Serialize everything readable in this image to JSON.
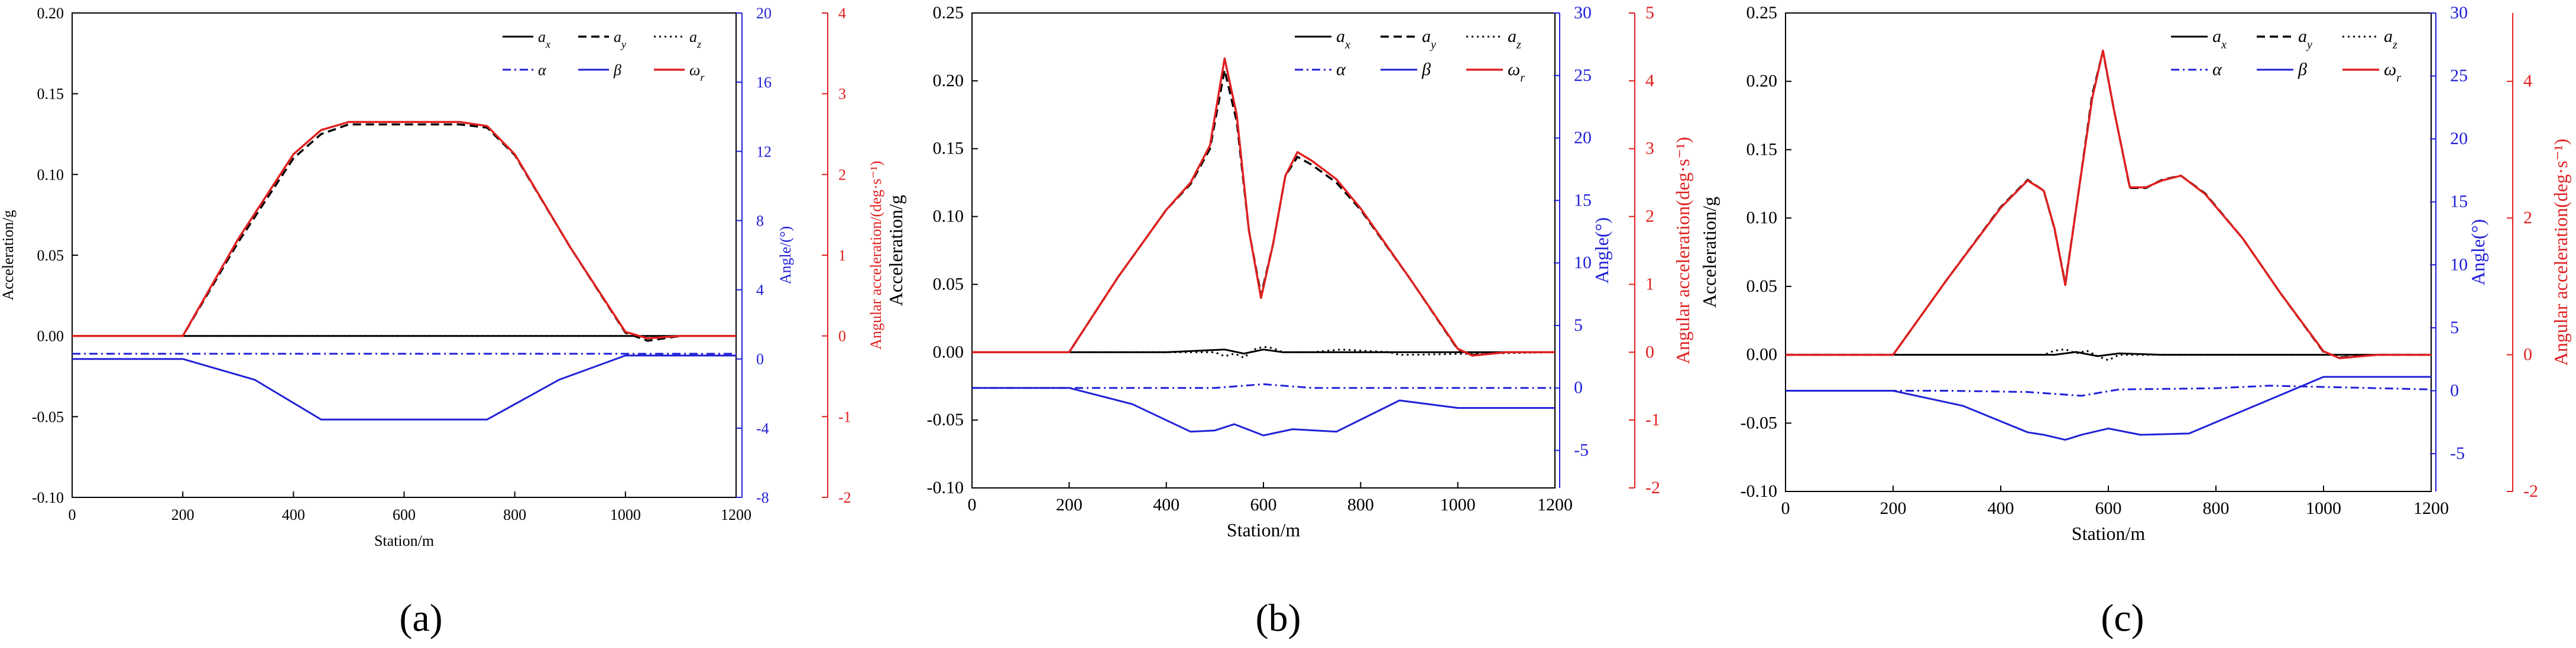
{
  "colors": {
    "accel": "#000000",
    "angle": "#2020d8",
    "omega": "#e02020",
    "axis": "#000000"
  },
  "chart_data": [
    {
      "type": "line",
      "panel_label": "(a)",
      "xlabel": "Station/m",
      "ylabel": "Acceleration/g",
      "ylabel_angle": "Angle/(°)",
      "ylabel_omega": "Angular acceleration/(deg·s⁻¹)",
      "xlim": [
        0,
        1200
      ],
      "ylim": [
        -0.1,
        0.2
      ],
      "ylim_angle": [
        -8,
        20
      ],
      "ylim_omega": [
        -2,
        4
      ],
      "xticks": [
        "0",
        "200",
        "400",
        "600",
        "800",
        "1000",
        "1200"
      ],
      "yticks": [
        "-0.10",
        "-0.05",
        "0.00",
        "0.05",
        "0.10",
        "0.15",
        "0.20"
      ],
      "yticks_angle": [
        "-8",
        "-4",
        "0",
        "4",
        "8",
        "12",
        "16",
        "20"
      ],
      "yticks_omega": [
        "-2",
        "-1",
        "0",
        "1",
        "2",
        "3",
        "4"
      ],
      "legend": {
        "ax": "a",
        "ax_sub": "x",
        "ay": "a",
        "ay_sub": "y",
        "az": "a",
        "az_sub": "z",
        "alpha": "α",
        "beta": "β",
        "omega": "ω",
        "omega_sub": "r"
      },
      "series": [
        {
          "name": "ax",
          "axis": "accel",
          "x": [
            0,
            200,
            400,
            600,
            800,
            1000,
            1200
          ],
          "values": [
            0,
            0,
            0,
            0,
            0,
            0,
            0
          ]
        },
        {
          "name": "ay",
          "axis": "accel",
          "x": [
            0,
            200,
            300,
            400,
            450,
            500,
            600,
            700,
            750,
            800,
            900,
            1000,
            1040,
            1100,
            1200
          ],
          "values": [
            0,
            0,
            0.058,
            0.11,
            0.125,
            0.131,
            0.131,
            0.131,
            0.129,
            0.112,
            0.055,
            0.002,
            -0.003,
            0,
            0
          ]
        },
        {
          "name": "az",
          "axis": "accel",
          "x": [
            0,
            200,
            600,
            1000,
            1200
          ],
          "values": [
            0,
            0,
            0,
            0,
            0
          ]
        },
        {
          "name": "alpha",
          "axis": "angle",
          "x": [
            0,
            200,
            400,
            600,
            800,
            1000,
            1200
          ],
          "values": [
            0.3,
            0.3,
            0.3,
            0.3,
            0.3,
            0.3,
            0.3
          ]
        },
        {
          "name": "beta",
          "axis": "angle",
          "x": [
            0,
            200,
            330,
            450,
            600,
            750,
            880,
            1000,
            1200
          ],
          "values": [
            0,
            0,
            -1.2,
            -3.5,
            -3.5,
            -3.5,
            -1.2,
            0.2,
            0.2
          ]
        },
        {
          "name": "omega",
          "axis": "omega",
          "x": [
            0,
            200,
            300,
            400,
            450,
            500,
            600,
            700,
            750,
            800,
            900,
            1000,
            1040,
            1100,
            1200
          ],
          "values": [
            0,
            0,
            1.2,
            2.25,
            2.55,
            2.65,
            2.65,
            2.65,
            2.6,
            2.25,
            1.1,
            0.05,
            -0.03,
            0,
            0
          ]
        }
      ]
    },
    {
      "type": "line",
      "panel_label": "(b)",
      "xlabel": "Station/m",
      "ylabel": "Acceleration/g",
      "ylabel_angle": "Angle(°)",
      "ylabel_omega": "Angular acceleration(deg·s⁻¹)",
      "xlim": [
        0,
        1200
      ],
      "ylim": [
        -0.1,
        0.25
      ],
      "ylim_angle": [
        -8,
        30
      ],
      "ylim_omega": [
        -2,
        5
      ],
      "xticks": [
        "0",
        "200",
        "400",
        "600",
        "800",
        "1000",
        "1200"
      ],
      "yticks": [
        "-0.10",
        "-0.05",
        "0.00",
        "0.05",
        "0.10",
        "0.15",
        "0.20",
        "0.25"
      ],
      "yticks_angle": [
        "-5",
        "0",
        "5",
        "10",
        "15",
        "20",
        "25",
        "30"
      ],
      "yticks_omega": [
        "-2",
        "-1",
        "0",
        "1",
        "2",
        "3",
        "4",
        "5"
      ],
      "legend": {
        "ax": "a",
        "ax_sub": "x",
        "ay": "a",
        "ay_sub": "y",
        "az": "a",
        "az_sub": "z",
        "alpha": "α",
        "beta": "β",
        "omega": "ω",
        "omega_sub": "r"
      },
      "series": [
        {
          "name": "ax",
          "axis": "accel",
          "x": [
            0,
            200,
            400,
            520,
            560,
            600,
            640,
            700,
            900,
            1200
          ],
          "values": [
            0,
            0,
            0,
            0.002,
            -0.001,
            0.002,
            0,
            0,
            0,
            0
          ]
        },
        {
          "name": "ay",
          "axis": "accel",
          "x": [
            0,
            200,
            300,
            400,
            450,
            490,
            520,
            545,
            570,
            595,
            620,
            645,
            670,
            700,
            750,
            800,
            900,
            1000,
            1030,
            1100,
            1200
          ],
          "values": [
            0,
            0,
            0.055,
            0.105,
            0.124,
            0.15,
            0.208,
            0.17,
            0.09,
            0.042,
            0.08,
            0.13,
            0.144,
            0.138,
            0.125,
            0.105,
            0.055,
            0.002,
            -0.002,
            0,
            0
          ]
        },
        {
          "name": "az",
          "axis": "accel",
          "x": [
            0,
            500,
            520,
            540,
            560,
            580,
            600,
            620,
            640,
            700,
            760,
            860,
            880,
            1200
          ],
          "values": [
            0,
            0,
            -0.003,
            -0.001,
            -0.004,
            0.002,
            0.004,
            0.003,
            0,
            0,
            0.002,
            0,
            -0.002,
            0
          ]
        },
        {
          "name": "alpha",
          "axis": "angle",
          "x": [
            0,
            300,
            500,
            600,
            700,
            900,
            1200
          ],
          "values": [
            0,
            0,
            0,
            0.3,
            0,
            0,
            0
          ]
        },
        {
          "name": "beta",
          "axis": "angle",
          "x": [
            0,
            200,
            330,
            450,
            500,
            540,
            600,
            660,
            750,
            880,
            1000,
            1200
          ],
          "values": [
            0,
            0,
            -1.3,
            -3.5,
            -3.4,
            -2.9,
            -3.8,
            -3.3,
            -3.5,
            -1.0,
            -1.6,
            -1.6
          ]
        },
        {
          "name": "omega",
          "axis": "omega",
          "x": [
            0,
            200,
            300,
            400,
            450,
            490,
            520,
            545,
            570,
            595,
            620,
            645,
            670,
            700,
            750,
            800,
            900,
            1000,
            1030,
            1100,
            1200
          ],
          "values": [
            0,
            0,
            1.1,
            2.1,
            2.5,
            3.05,
            4.33,
            3.5,
            1.8,
            0.8,
            1.6,
            2.6,
            2.95,
            2.82,
            2.55,
            2.12,
            1.1,
            0.05,
            -0.05,
            0,
            0
          ]
        }
      ]
    },
    {
      "type": "line",
      "panel_label": "(c)",
      "xlabel": "Station/m",
      "ylabel": "Acceleration/g",
      "ylabel_angle": "Angle(°)",
      "ylabel_omega": "Angular acceleration(deg·s⁻¹)",
      "xlim": [
        0,
        1200
      ],
      "ylim": [
        -0.1,
        0.25
      ],
      "ylim_angle": [
        -8,
        30
      ],
      "ylim_omega": [
        -2,
        5
      ],
      "xticks": [
        "0",
        "200",
        "400",
        "600",
        "800",
        "1000",
        "1200"
      ],
      "yticks": [
        "-0.10",
        "-0.05",
        "0.00",
        "0.05",
        "0.10",
        "0.15",
        "0.20",
        "0.25"
      ],
      "yticks_angle": [
        "-5",
        "0",
        "5",
        "10",
        "15",
        "20",
        "25",
        "30"
      ],
      "yticks_omega": [
        "-2",
        "0",
        "2",
        "4"
      ],
      "legend": {
        "ax": "a",
        "ax_sub": "x",
        "ay": "a",
        "ay_sub": "y",
        "az": "a",
        "az_sub": "z",
        "alpha": "α",
        "beta": "β",
        "omega": "ω",
        "omega_sub": "r"
      },
      "series": [
        {
          "name": "ax",
          "axis": "accel",
          "x": [
            0,
            200,
            400,
            500,
            540,
            580,
            620,
            700,
            900,
            1200
          ],
          "values": [
            0,
            0,
            0,
            0,
            0.002,
            -0.001,
            0.001,
            0,
            0,
            0
          ]
        },
        {
          "name": "ay",
          "axis": "accel",
          "x": [
            0,
            200,
            300,
            400,
            450,
            480,
            500,
            520,
            545,
            570,
            590,
            610,
            640,
            670,
            700,
            735,
            780,
            850,
            920,
            1000,
            1030,
            1100,
            1200
          ],
          "values": [
            0,
            0,
            0.055,
            0.108,
            0.128,
            0.12,
            0.092,
            0.052,
            0.12,
            0.19,
            0.222,
            0.18,
            0.122,
            0.122,
            0.128,
            0.131,
            0.118,
            0.085,
            0.045,
            0.002,
            -0.002,
            0,
            0
          ]
        },
        {
          "name": "az",
          "axis": "accel",
          "x": [
            0,
            480,
            500,
            520,
            540,
            560,
            580,
            600,
            620,
            700,
            1200
          ],
          "values": [
            0,
            0,
            0.003,
            0.004,
            0.001,
            0.003,
            -0.001,
            -0.004,
            0,
            0,
            0
          ]
        },
        {
          "name": "alpha",
          "axis": "angle",
          "x": [
            0,
            300,
            450,
            550,
            620,
            800,
            900,
            1200
          ],
          "values": [
            0,
            0,
            -0.1,
            -0.4,
            0.1,
            0.2,
            0.4,
            0.1
          ]
        },
        {
          "name": "beta",
          "axis": "angle",
          "x": [
            0,
            200,
            330,
            450,
            480,
            520,
            550,
            600,
            660,
            750,
            1000,
            1200
          ],
          "values": [
            0,
            0,
            -1.2,
            -3.3,
            -3.5,
            -3.9,
            -3.5,
            -3.0,
            -3.5,
            -3.4,
            1.1,
            1.1
          ]
        },
        {
          "name": "omega",
          "axis": "omega",
          "x": [
            0,
            200,
            300,
            400,
            450,
            480,
            500,
            520,
            545,
            570,
            590,
            610,
            640,
            670,
            700,
            735,
            780,
            850,
            920,
            1000,
            1030,
            1100,
            1200
          ],
          "values": [
            0,
            0,
            1.1,
            2.15,
            2.55,
            2.4,
            1.85,
            1.02,
            2.4,
            3.75,
            4.45,
            3.6,
            2.45,
            2.45,
            2.55,
            2.62,
            2.35,
            1.7,
            0.9,
            0.05,
            -0.05,
            0,
            0
          ]
        }
      ]
    }
  ]
}
